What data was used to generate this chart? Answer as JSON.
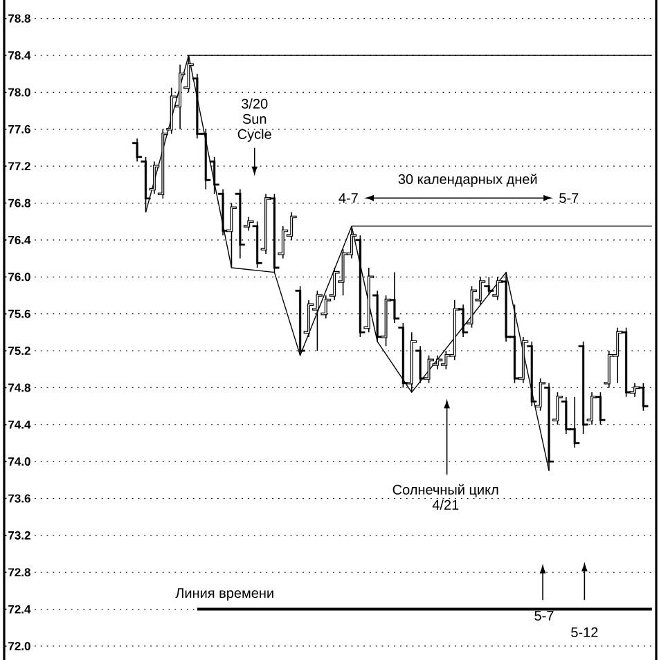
{
  "chart_data": {
    "type": "candlestick",
    "color": "#000000",
    "categories": [
      null,
      null,
      null,
      null,
      null,
      null,
      null,
      null,
      null,
      null,
      null,
      null,
      null,
      null,
      null,
      null,
      null,
      null,
      null,
      null,
      null,
      null,
      null,
      null,
      null,
      null,
      null,
      null,
      null,
      null,
      null,
      null,
      null,
      null,
      null,
      null,
      null,
      null,
      null,
      null,
      null,
      null,
      null,
      null,
      null,
      null,
      null,
      null,
      null,
      null,
      null,
      null,
      null,
      null,
      null,
      null,
      null,
      null,
      null,
      null,
      null,
      null,
      null,
      null,
      null,
      null,
      null,
      null,
      null,
      null,
      null,
      null,
      null,
      null,
      null,
      null
    ],
    "ohlc": [
      null,
      null,
      null,
      null,
      null,
      null,
      null,
      null,
      null,
      null,
      null,
      null,
      null,
      null,
      null,
      [
        77.45,
        77.5,
        77.25,
        77.3
      ],
      [
        77.25,
        77.3,
        76.7,
        76.85
      ],
      [
        76.95,
        77.25,
        76.9,
        77.2
      ],
      [
        76.9,
        77.6,
        76.85,
        77.55
      ],
      [
        77.6,
        78.05,
        77.55,
        77.95
      ],
      [
        77.85,
        78.3,
        77.6,
        78.2
      ],
      [
        78.05,
        78.4,
        78.0,
        78.3
      ],
      [
        78.15,
        78.2,
        77.5,
        77.55
      ],
      [
        77.55,
        77.6,
        76.95,
        77.05
      ],
      [
        77.25,
        77.3,
        76.9,
        77.0
      ],
      [
        76.9,
        76.95,
        76.45,
        76.5
      ],
      [
        76.5,
        76.8,
        76.1,
        76.75
      ],
      [
        76.9,
        76.95,
        76.2,
        76.35
      ],
      [
        76.55,
        76.65,
        76.5,
        76.6
      ],
      [
        76.55,
        76.6,
        76.1,
        76.15
      ],
      [
        76.3,
        76.9,
        76.25,
        76.85
      ],
      [
        76.85,
        76.9,
        76.05,
        76.1
      ],
      [
        76.25,
        76.55,
        76.2,
        76.5
      ],
      [
        76.45,
        76.7,
        76.4,
        76.65
      ],
      [
        75.85,
        75.9,
        75.15,
        75.2
      ],
      [
        75.4,
        75.75,
        75.35,
        75.7
      ],
      [
        75.65,
        75.85,
        75.2,
        75.8
      ],
      [
        75.6,
        75.8,
        75.55,
        75.75
      ],
      [
        75.8,
        76.1,
        75.75,
        76.05
      ],
      [
        75.95,
        76.3,
        75.8,
        76.25
      ],
      [
        76.25,
        76.55,
        76.2,
        76.45
      ],
      [
        76.4,
        76.45,
        75.35,
        75.4
      ],
      [
        75.45,
        76.1,
        75.4,
        76.0
      ],
      [
        75.8,
        75.85,
        75.3,
        75.35
      ],
      [
        75.35,
        75.8,
        75.25,
        75.75
      ],
      [
        75.75,
        76.05,
        75.5,
        75.55
      ],
      [
        75.45,
        75.5,
        74.8,
        74.85
      ],
      [
        74.85,
        75.4,
        74.75,
        75.3
      ],
      [
        75.2,
        75.25,
        74.85,
        74.9
      ],
      [
        74.9,
        75.15,
        74.85,
        75.1
      ],
      [
        75.05,
        75.15,
        75.0,
        75.1
      ],
      [
        75.05,
        75.2,
        75.0,
        75.15
      ],
      [
        75.15,
        75.75,
        75.1,
        75.65
      ],
      [
        75.65,
        75.7,
        75.35,
        75.4
      ],
      [
        75.5,
        75.9,
        75.45,
        75.85
      ],
      [
        75.75,
        76.0,
        75.7,
        75.95
      ],
      [
        75.9,
        76.0,
        75.8,
        75.85
      ],
      [
        75.8,
        76.0,
        75.75,
        75.95
      ],
      [
        75.95,
        76.05,
        75.3,
        75.35
      ],
      [
        75.35,
        75.7,
        74.85,
        74.9
      ],
      [
        74.9,
        75.35,
        74.85,
        75.3
      ],
      [
        75.25,
        75.3,
        74.6,
        74.65
      ],
      [
        74.6,
        74.9,
        74.55,
        74.85
      ],
      [
        74.8,
        74.85,
        73.9,
        74.0
      ],
      [
        74.45,
        74.75,
        74.4,
        74.7
      ],
      [
        74.65,
        74.7,
        74.3,
        74.35
      ],
      [
        74.35,
        74.7,
        74.15,
        74.2
      ],
      [
        75.25,
        75.3,
        74.3,
        74.4
      ],
      [
        74.45,
        74.75,
        74.4,
        74.7
      ],
      [
        74.7,
        74.75,
        74.4,
        74.45
      ],
      [
        74.85,
        75.2,
        74.8,
        75.15
      ],
      [
        75.15,
        75.45,
        74.85,
        75.4
      ],
      [
        75.4,
        75.45,
        74.7,
        74.75
      ],
      [
        74.75,
        74.85,
        74.7,
        74.8
      ],
      [
        74.8,
        74.85,
        74.55,
        74.6
      ],
      null
    ],
    "series": [
      {
        "type": "line",
        "color": "#000000",
        "values": [
          null,
          null,
          null,
          null,
          null,
          null,
          null,
          null,
          null,
          null,
          null,
          null,
          null,
          null,
          null,
          null,
          76.7,
          null,
          null,
          null,
          null,
          78.4,
          null,
          null,
          null,
          null,
          76.1,
          null,
          null,
          null,
          null,
          76.05,
          null,
          null,
          75.15,
          null,
          null,
          null,
          null,
          null,
          76.55,
          null,
          null,
          75.3,
          null,
          null,
          null,
          74.75,
          null,
          null,
          null,
          null,
          null,
          null,
          null,
          null,
          null,
          null,
          76.05,
          null,
          null,
          null,
          null,
          73.9,
          null,
          null,
          null,
          null,
          null,
          null,
          null,
          null,
          null,
          null,
          null,
          null
        ]
      },
      {
        "type": "line",
        "color": "#000000",
        "values": [
          null,
          null,
          null,
          null,
          null,
          null,
          null,
          null,
          null,
          null,
          null,
          null,
          null,
          null,
          null,
          null,
          null,
          null,
          null,
          null,
          null,
          78.4,
          78.4,
          78.4,
          78.4,
          78.4,
          78.4,
          78.4,
          78.4,
          78.4,
          78.4,
          78.4,
          78.4,
          78.4,
          78.4,
          78.4,
          78.4,
          78.4,
          78.4,
          78.4,
          78.4,
          78.4,
          78.4,
          78.4,
          78.4,
          78.4,
          78.4,
          78.4,
          78.4,
          78.4,
          78.4,
          78.4,
          78.4,
          78.4,
          78.4,
          78.4,
          78.4,
          78.4,
          78.4,
          78.4,
          78.4,
          78.4,
          78.4,
          78.4,
          78.4,
          78.4,
          78.4,
          78.4,
          78.4,
          78.4,
          78.4,
          78.4,
          78.4,
          78.4,
          78.4,
          78.4
        ]
      },
      {
        "type": "line",
        "color": "#000000",
        "values": [
          null,
          null,
          null,
          null,
          null,
          null,
          null,
          null,
          null,
          null,
          null,
          null,
          null,
          null,
          null,
          null,
          null,
          null,
          null,
          null,
          null,
          null,
          null,
          null,
          null,
          null,
          null,
          null,
          null,
          null,
          null,
          null,
          null,
          null,
          null,
          null,
          null,
          null,
          null,
          null,
          76.55,
          76.55,
          76.55,
          76.55,
          76.55,
          76.55,
          76.55,
          76.55,
          76.55,
          76.55,
          76.55,
          76.55,
          76.55,
          76.55,
          76.55,
          76.55,
          76.55,
          76.55,
          76.55,
          76.55,
          76.55,
          76.55,
          76.55,
          76.55,
          76.55,
          76.55,
          76.55,
          76.55,
          76.55,
          76.55,
          76.55,
          76.55,
          76.55,
          76.55,
          76.55,
          76.55
        ]
      },
      {
        "type": "line",
        "name": "Линия времени",
        "color": "#000000",
        "values": [
          null,
          null,
          null,
          null,
          null,
          null,
          null,
          null,
          null,
          null,
          null,
          null,
          null,
          null,
          null,
          null,
          null,
          null,
          null,
          null,
          null,
          null,
          72.4,
          72.4,
          72.4,
          72.4,
          72.4,
          72.4,
          72.4,
          72.4,
          72.4,
          72.4,
          72.4,
          72.4,
          72.4,
          72.4,
          72.4,
          72.4,
          72.4,
          72.4,
          72.4,
          72.4,
          72.4,
          72.4,
          72.4,
          72.4,
          72.4,
          72.4,
          72.4,
          72.4,
          72.4,
          72.4,
          72.4,
          72.4,
          72.4,
          72.4,
          72.4,
          72.4,
          72.4,
          72.4,
          72.4,
          72.4,
          72.4,
          72.4,
          72.4,
          72.4,
          72.4,
          72.4,
          72.4,
          72.4,
          72.4,
          72.4,
          72.4,
          72.4,
          72.4,
          72.4
        ]
      }
    ],
    "ylim": [
      71.85,
      79.0
    ],
    "yticks": [
      {
        "value": 72,
        "label": "72.0"
      },
      72.4,
      72.8,
      73.2,
      73.6,
      {
        "value": 74,
        "label": "74.0"
      },
      74.4,
      74.8,
      75.2,
      75.6,
      {
        "value": 76,
        "label": "76.0"
      },
      76.4,
      76.8,
      77.2,
      77.6,
      {
        "value": 78,
        "label": "78.0"
      },
      78.4,
      78.8
    ],
    "grid": "y",
    "tick_labels": "y",
    "annotations": [
      "3/20 Sun Cycle",
      "4-7",
      "30 календарных дней",
      "5-7",
      "Солнечный цикл 4/21",
      "5-7",
      "5-12"
    ]
  }
}
